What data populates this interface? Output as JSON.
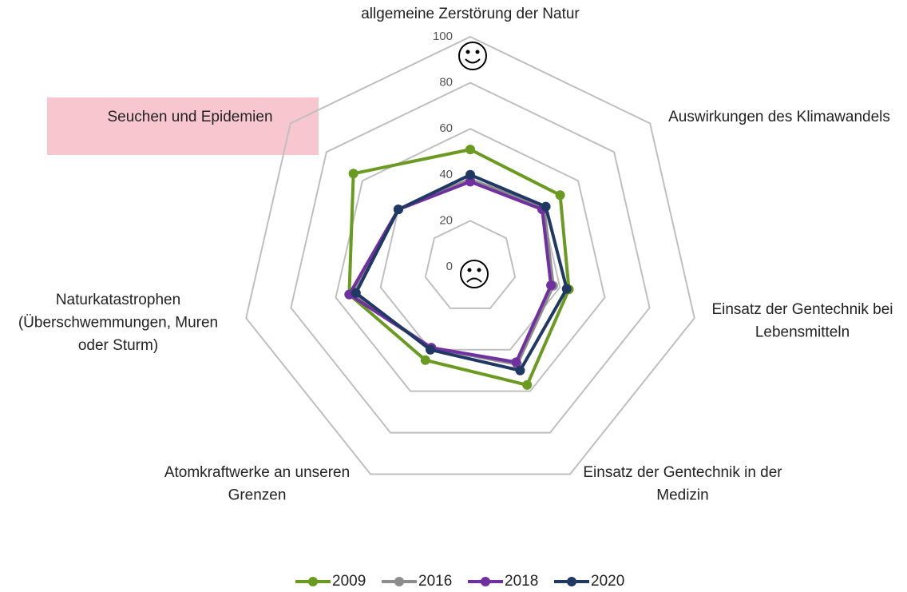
{
  "chart_data": {
    "type": "radar",
    "categories": [
      [
        "allgemeine Zerstörung der Natur"
      ],
      [
        "Auswirkungen des Klimawandels"
      ],
      [
        "Einsatz der Gentechnik bei",
        "Lebensmitteln"
      ],
      [
        "Einsatz der Gentechnik in der",
        "Medizin"
      ],
      [
        "Atomkraftwerke an unseren",
        "Grenzen"
      ],
      [
        "Naturkatastrophen",
        "(Überschwemmungen, Muren",
        "oder Sturm)"
      ],
      [
        "Seuchen und Epidemien"
      ]
    ],
    "series": [
      {
        "name": "2009",
        "color": "#6a9a1f",
        "values": [
          51,
          50,
          44,
          57,
          45,
          54,
          65
        ]
      },
      {
        "name": "2016",
        "color": "#8c8c8c",
        "values": [
          38,
          41,
          37,
          47,
          39,
          53,
          40
        ]
      },
      {
        "name": "2018",
        "color": "#7030a0",
        "values": [
          37,
          40,
          36,
          46,
          39,
          54,
          40
        ]
      },
      {
        "name": "2020",
        "color": "#203864",
        "values": [
          40,
          42,
          43,
          50,
          40,
          51,
          40
        ]
      }
    ],
    "rlim": [
      0,
      100
    ],
    "rticks": [
      0,
      20,
      40,
      60,
      80,
      100
    ],
    "grid": true,
    "legend": "bottom"
  }
}
